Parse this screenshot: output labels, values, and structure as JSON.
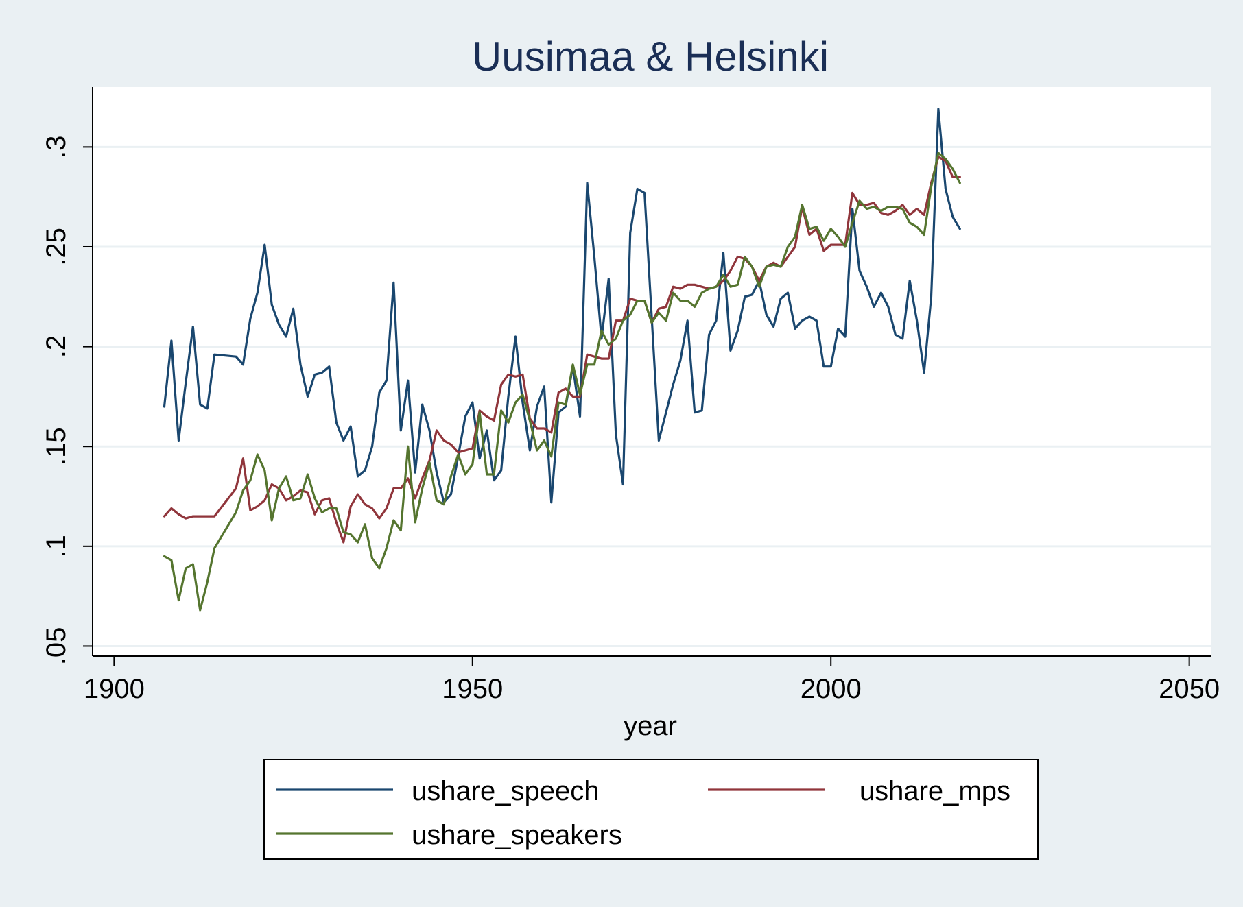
{
  "chart_data": {
    "type": "line",
    "title": "Uusimaa & Helsinki",
    "xlabel": "year",
    "ylabel": "",
    "xlim": [
      1897,
      2053
    ],
    "ylim": [
      0.045,
      0.33
    ],
    "x_ticks": [
      1900,
      1950,
      2000,
      2050
    ],
    "x_tick_labels": [
      "1900",
      "1950",
      "2000",
      "2050"
    ],
    "y_ticks": [
      0.05,
      0.1,
      0.15,
      0.2,
      0.25,
      0.3
    ],
    "y_tick_labels": [
      ".05",
      ".1",
      ".15",
      ".2",
      ".25",
      ".3"
    ],
    "grid": "horizontal",
    "legend_position": "bottom",
    "background_color": "#eaf0f3",
    "plot_background": "#ffffff",
    "series": [
      {
        "name": "ushare_speech",
        "color": "#1a476f",
        "x": [
          1907,
          1908,
          1909,
          1910,
          1911,
          1912,
          1913,
          1914,
          1917,
          1918,
          1919,
          1920,
          1921,
          1922,
          1923,
          1924,
          1925,
          1926,
          1927,
          1928,
          1929,
          1930,
          1931,
          1932,
          1933,
          1934,
          1935,
          1936,
          1937,
          1938,
          1939,
          1940,
          1941,
          1942,
          1943,
          1944,
          1945,
          1946,
          1947,
          1948,
          1949,
          1950,
          1951,
          1952,
          1953,
          1954,
          1955,
          1956,
          1957,
          1958,
          1959,
          1960,
          1961,
          1962,
          1963,
          1964,
          1965,
          1966,
          1967,
          1968,
          1969,
          1970,
          1971,
          1972,
          1973,
          1974,
          1975,
          1976,
          1977,
          1978,
          1979,
          1980,
          1981,
          1982,
          1983,
          1984,
          1985,
          1986,
          1987,
          1988,
          1989,
          1990,
          1991,
          1992,
          1993,
          1994,
          1995,
          1996,
          1997,
          1998,
          1999,
          2000,
          2001,
          2002,
          2003,
          2004,
          2005,
          2006,
          2007,
          2008,
          2009,
          2010,
          2011,
          2012,
          2013,
          2014,
          2015,
          2016,
          2017,
          2018
        ],
        "values": [
          0.17,
          0.203,
          0.153,
          0.182,
          0.21,
          0.171,
          0.169,
          0.196,
          0.195,
          0.191,
          0.214,
          0.227,
          0.251,
          0.221,
          0.211,
          0.205,
          0.219,
          0.191,
          0.175,
          0.186,
          0.187,
          0.19,
          0.162,
          0.153,
          0.16,
          0.135,
          0.138,
          0.15,
          0.177,
          0.183,
          0.232,
          0.158,
          0.183,
          0.137,
          0.171,
          0.158,
          0.137,
          0.122,
          0.126,
          0.145,
          0.165,
          0.172,
          0.144,
          0.158,
          0.133,
          0.138,
          0.175,
          0.205,
          0.172,
          0.148,
          0.17,
          0.18,
          0.122,
          0.167,
          0.17,
          0.19,
          0.165,
          0.282,
          0.245,
          0.204,
          0.234,
          0.156,
          0.131,
          0.257,
          0.279,
          0.277,
          0.215,
          0.153,
          0.167,
          0.181,
          0.193,
          0.213,
          0.167,
          0.168,
          0.206,
          0.213,
          0.247,
          0.198,
          0.208,
          0.225,
          0.226,
          0.233,
          0.216,
          0.21,
          0.224,
          0.227,
          0.209,
          0.213,
          0.215,
          0.213,
          0.19,
          0.19,
          0.209,
          0.205,
          0.269,
          0.238,
          0.23,
          0.22,
          0.227,
          0.22,
          0.206,
          0.204,
          0.233,
          0.213,
          0.187,
          0.225,
          0.319,
          0.279,
          0.265,
          0.259
        ]
      },
      {
        "name": "ushare_mps",
        "color": "#90353b",
        "x": [
          1907,
          1908,
          1909,
          1910,
          1911,
          1912,
          1913,
          1914,
          1917,
          1918,
          1919,
          1920,
          1921,
          1922,
          1923,
          1924,
          1925,
          1926,
          1927,
          1928,
          1929,
          1930,
          1931,
          1932,
          1933,
          1934,
          1935,
          1936,
          1937,
          1938,
          1939,
          1940,
          1941,
          1942,
          1943,
          1944,
          1945,
          1946,
          1947,
          1948,
          1949,
          1950,
          1951,
          1952,
          1953,
          1954,
          1955,
          1956,
          1957,
          1958,
          1959,
          1960,
          1961,
          1962,
          1963,
          1964,
          1965,
          1966,
          1967,
          1968,
          1969,
          1970,
          1971,
          1972,
          1973,
          1974,
          1975,
          1976,
          1977,
          1978,
          1979,
          1980,
          1981,
          1982,
          1983,
          1984,
          1985,
          1986,
          1987,
          1988,
          1989,
          1990,
          1991,
          1992,
          1993,
          1994,
          1995,
          1996,
          1997,
          1998,
          1999,
          2000,
          2001,
          2002,
          2003,
          2004,
          2005,
          2006,
          2007,
          2008,
          2009,
          2010,
          2011,
          2012,
          2013,
          2014,
          2015,
          2016,
          2017,
          2018
        ],
        "values": [
          0.115,
          0.119,
          0.116,
          0.114,
          0.115,
          0.115,
          0.115,
          0.115,
          0.129,
          0.144,
          0.118,
          0.12,
          0.123,
          0.131,
          0.129,
          0.123,
          0.125,
          0.128,
          0.127,
          0.116,
          0.123,
          0.124,
          0.112,
          0.102,
          0.12,
          0.126,
          0.121,
          0.119,
          0.114,
          0.119,
          0.129,
          0.129,
          0.134,
          0.124,
          0.134,
          0.143,
          0.158,
          0.153,
          0.151,
          0.147,
          0.148,
          0.149,
          0.168,
          0.165,
          0.163,
          0.181,
          0.186,
          0.185,
          0.186,
          0.164,
          0.159,
          0.159,
          0.157,
          0.177,
          0.179,
          0.175,
          0.175,
          0.196,
          0.195,
          0.194,
          0.194,
          0.213,
          0.213,
          0.224,
          0.223,
          0.223,
          0.212,
          0.219,
          0.22,
          0.23,
          0.229,
          0.231,
          0.231,
          0.23,
          0.229,
          0.23,
          0.233,
          0.238,
          0.245,
          0.244,
          0.24,
          0.233,
          0.24,
          0.242,
          0.24,
          0.245,
          0.25,
          0.27,
          0.256,
          0.259,
          0.248,
          0.251,
          0.251,
          0.251,
          0.277,
          0.271,
          0.271,
          0.272,
          0.267,
          0.266,
          0.268,
          0.271,
          0.266,
          0.269,
          0.266,
          0.282,
          0.295,
          0.293,
          0.285,
          0.285
        ]
      },
      {
        "name": "ushare_speakers",
        "color": "#55752f",
        "x": [
          1907,
          1908,
          1909,
          1910,
          1911,
          1912,
          1913,
          1914,
          1917,
          1918,
          1919,
          1920,
          1921,
          1922,
          1923,
          1924,
          1925,
          1926,
          1927,
          1928,
          1929,
          1930,
          1931,
          1932,
          1933,
          1934,
          1935,
          1936,
          1937,
          1938,
          1939,
          1940,
          1941,
          1942,
          1943,
          1944,
          1945,
          1946,
          1947,
          1948,
          1949,
          1950,
          1951,
          1952,
          1953,
          1954,
          1955,
          1956,
          1957,
          1958,
          1959,
          1960,
          1961,
          1962,
          1963,
          1964,
          1965,
          1966,
          1967,
          1968,
          1969,
          1970,
          1971,
          1972,
          1973,
          1974,
          1975,
          1976,
          1977,
          1978,
          1979,
          1980,
          1981,
          1982,
          1983,
          1984,
          1985,
          1986,
          1987,
          1988,
          1989,
          1990,
          1991,
          1992,
          1993,
          1994,
          1995,
          1996,
          1997,
          1998,
          1999,
          2000,
          2001,
          2002,
          2003,
          2004,
          2005,
          2006,
          2007,
          2008,
          2009,
          2010,
          2011,
          2012,
          2013,
          2014,
          2015,
          2016,
          2017,
          2018
        ],
        "values": [
          0.095,
          0.093,
          0.073,
          0.089,
          0.091,
          0.068,
          0.082,
          0.099,
          0.117,
          0.128,
          0.133,
          0.146,
          0.138,
          0.113,
          0.129,
          0.135,
          0.123,
          0.124,
          0.136,
          0.124,
          0.117,
          0.119,
          0.119,
          0.107,
          0.106,
          0.102,
          0.111,
          0.094,
          0.089,
          0.099,
          0.113,
          0.108,
          0.15,
          0.112,
          0.129,
          0.142,
          0.123,
          0.121,
          0.135,
          0.146,
          0.136,
          0.141,
          0.167,
          0.136,
          0.136,
          0.168,
          0.162,
          0.172,
          0.176,
          0.163,
          0.148,
          0.153,
          0.145,
          0.172,
          0.171,
          0.191,
          0.176,
          0.191,
          0.191,
          0.208,
          0.201,
          0.204,
          0.213,
          0.216,
          0.223,
          0.223,
          0.212,
          0.217,
          0.213,
          0.227,
          0.223,
          0.223,
          0.22,
          0.227,
          0.229,
          0.23,
          0.236,
          0.23,
          0.231,
          0.245,
          0.24,
          0.23,
          0.24,
          0.241,
          0.24,
          0.25,
          0.255,
          0.271,
          0.259,
          0.26,
          0.253,
          0.259,
          0.255,
          0.25,
          0.262,
          0.273,
          0.269,
          0.27,
          0.268,
          0.27,
          0.27,
          0.269,
          0.262,
          0.26,
          0.256,
          0.28,
          0.297,
          0.294,
          0.289,
          0.282
        ]
      }
    ]
  }
}
